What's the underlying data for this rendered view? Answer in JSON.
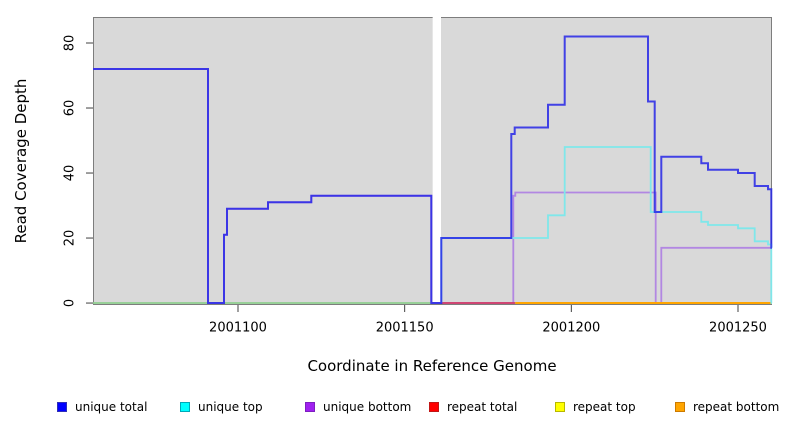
{
  "chart_data": {
    "type": "line",
    "style": "step",
    "title": "",
    "xlabel": "Coordinate in Reference Genome",
    "ylabel": "Read Coverage Depth",
    "xlim": [
      2001056.5,
      2001260.2
    ],
    "ylim": [
      -0.6,
      88
    ],
    "x_ticks": [
      2001100,
      2001150,
      2001200,
      2001250
    ],
    "y_ticks": [
      0,
      20,
      40,
      60,
      80
    ],
    "panel_bg": "#d9d9d9",
    "panel_border": "#7d7d7d",
    "gap": {
      "x0": 2001158.4,
      "x1": 2001160.9,
      "color": "#ffffff"
    },
    "series": [
      {
        "name": "unique-top-repeat-overlap-baseline",
        "color": "#8ecf8e",
        "width": 1.8,
        "opacity": 1,
        "knots": [
          [
            2001056.5,
            0
          ]
        ],
        "end": 2001161
      },
      {
        "name": "unique-bottom",
        "color": "#b287e2",
        "width": 1.8,
        "opacity": 1,
        "knots": [
          [
            2001056.5,
            72
          ],
          [
            2001091,
            0
          ],
          [
            2001095.8,
            21
          ],
          [
            2001096.7,
            29
          ],
          [
            2001109,
            31
          ],
          [
            2001122,
            33
          ],
          [
            2001158,
            0
          ],
          [
            2001182.6,
            33
          ],
          [
            2001183.2,
            34
          ],
          [
            2001225.3,
            0
          ],
          [
            2001227,
            17
          ]
        ],
        "end": 2001260.2
      },
      {
        "name": "repeat-total",
        "color": "#d23a64",
        "width": 1.8,
        "opacity": 1,
        "knots": [
          [
            2001161,
            0
          ]
        ],
        "end": 2001183.2
      },
      {
        "name": "repeat-bottom",
        "color": "#ffa500",
        "width": 2,
        "opacity": 1,
        "knots": [
          [
            2001183.2,
            0
          ]
        ],
        "end": 2001260.2
      },
      {
        "name": "repeat-top",
        "color": "#ffff00",
        "width": 1.5,
        "opacity": 0,
        "knots": [
          [
            2001056.5,
            0
          ]
        ],
        "end": 2001260.2
      },
      {
        "name": "unique-top",
        "color": "#7fe7ea",
        "width": 1.8,
        "opacity": 1,
        "knots": [
          [
            2001161,
            0
          ],
          [
            2001161,
            20
          ],
          [
            2001193,
            27
          ],
          [
            2001198,
            48
          ],
          [
            2001223.8,
            28
          ],
          [
            2001239,
            25
          ],
          [
            2001241,
            24
          ],
          [
            2001250,
            23
          ],
          [
            2001255,
            19
          ],
          [
            2001259,
            18
          ],
          [
            2001260,
            0
          ]
        ],
        "end": 2001260.2
      },
      {
        "name": "unique-total",
        "color": "#2626e6",
        "width": 2,
        "opacity": 0.85,
        "knots": [
          [
            2001056.5,
            72
          ],
          [
            2001091,
            0
          ],
          [
            2001095.8,
            21
          ],
          [
            2001096.7,
            29
          ],
          [
            2001109,
            31
          ],
          [
            2001122,
            33
          ],
          [
            2001158,
            0
          ],
          [
            2001161,
            20
          ],
          [
            2001182,
            52
          ],
          [
            2001183,
            54
          ],
          [
            2001193,
            61
          ],
          [
            2001198,
            82
          ],
          [
            2001223,
            62
          ],
          [
            2001225,
            28
          ],
          [
            2001227,
            45
          ],
          [
            2001239,
            43
          ],
          [
            2001241,
            41
          ],
          [
            2001250,
            40
          ],
          [
            2001255,
            36
          ],
          [
            2001259,
            35
          ],
          [
            2001260,
            17
          ]
        ],
        "end": 2001260.2
      }
    ],
    "legend": [
      {
        "label": "unique total",
        "fill": "#0000ff",
        "border": "#2e2eb8"
      },
      {
        "label": "unique top",
        "fill": "#00ffff",
        "border": "#00a8b8"
      },
      {
        "label": "unique bottom",
        "fill": "#a020f0",
        "border": "#7d1fc0"
      },
      {
        "label": "repeat total",
        "fill": "#ff0000",
        "border": "#c01616"
      },
      {
        "label": "repeat top",
        "fill": "#ffff00",
        "border": "#b8b800"
      },
      {
        "label": "repeat bottom",
        "fill": "#ffa500",
        "border": "#cc7a00"
      }
    ]
  }
}
